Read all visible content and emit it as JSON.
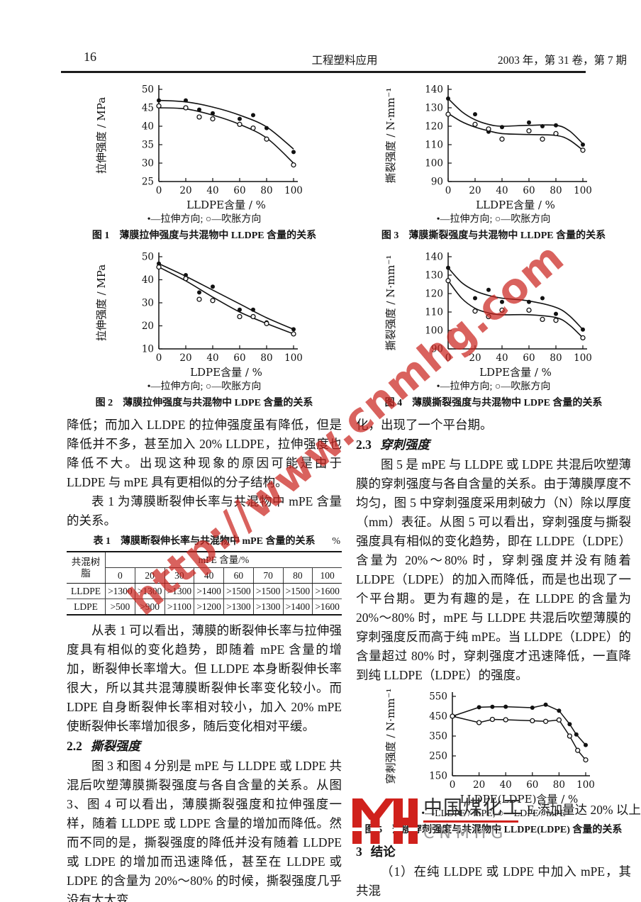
{
  "header": {
    "page_number": "16",
    "journal_title": "工程塑料应用",
    "issue_info": "2003 年，第 31 卷，第 7 期"
  },
  "watermark": {
    "text": "http://www.cnmhg.com",
    "color": "#ca2620"
  },
  "charts": [
    {
      "type": "scatter",
      "ylabel": "拉伸强度 / MPa",
      "xlabel": "LLDPE含量 / %",
      "ylim": [
        25,
        50
      ],
      "yticks": [
        25,
        30,
        35,
        40,
        45,
        50
      ],
      "xlim": [
        0,
        100
      ],
      "xticks": [
        0,
        20,
        40,
        60,
        80,
        100
      ],
      "legend": "•—拉伸方向;  ○—吹胀方向",
      "caption": "图 1　薄膜拉伸强度与共混物中 LLDPE 含量的关系",
      "series": [
        {
          "name": "拉伸方向",
          "marker": "filled",
          "points": [
            [
              0,
              47
            ],
            [
              20,
              47
            ],
            [
              30,
              44.5
            ],
            [
              40,
              43.5
            ],
            [
              60,
              42
            ],
            [
              70,
              43
            ],
            [
              80,
              39.5
            ],
            [
              100,
              33
            ]
          ],
          "trend": [
            [
              0,
              47
            ],
            [
              20,
              46.6
            ],
            [
              40,
              45.2
            ],
            [
              60,
              43
            ],
            [
              80,
              39.8
            ],
            [
              100,
              33.8
            ]
          ]
        },
        {
          "name": "吹胀方向",
          "marker": "open",
          "points": [
            [
              0,
              45.5
            ],
            [
              20,
              45
            ],
            [
              30,
              42.5
            ],
            [
              40,
              42
            ],
            [
              60,
              40.5
            ],
            [
              70,
              39.5
            ],
            [
              80,
              36.5
            ],
            [
              100,
              29.5
            ]
          ],
          "trend": [
            [
              0,
              45
            ],
            [
              20,
              44.7
            ],
            [
              40,
              43
            ],
            [
              60,
              40.5
            ],
            [
              80,
              36.8
            ],
            [
              100,
              30
            ]
          ]
        }
      ]
    },
    {
      "type": "scatter",
      "ylabel": "拉伸强度 / MPa",
      "xlabel": "LDPE含量 / %",
      "ylim": [
        10,
        50
      ],
      "yticks": [
        10,
        20,
        30,
        40,
        50
      ],
      "xlim": [
        0,
        100
      ],
      "xticks": [
        0,
        20,
        40,
        60,
        80,
        100
      ],
      "legend": "•—拉伸方向;  ○—吹胀方向",
      "caption": "图 2　薄膜拉伸强度与共混物中 LDPE 含量的关系",
      "series": [
        {
          "name": "拉伸方向",
          "marker": "filled",
          "points": [
            [
              0,
              47
            ],
            [
              20,
              42
            ],
            [
              30,
              34.5
            ],
            [
              40,
              37
            ],
            [
              60,
              27
            ],
            [
              70,
              27
            ],
            [
              80,
              21.5
            ],
            [
              100,
              18.5
            ]
          ],
          "trend": [
            [
              0,
              47
            ],
            [
              20,
              41.5
            ],
            [
              40,
              35.5
            ],
            [
              60,
              29.5
            ],
            [
              80,
              23.5
            ],
            [
              100,
              18.5
            ]
          ]
        },
        {
          "name": "吹胀方向",
          "marker": "open",
          "points": [
            [
              0,
              45.5
            ],
            [
              20,
              40.5
            ],
            [
              30,
              31.5
            ],
            [
              40,
              31
            ],
            [
              60,
              24
            ],
            [
              70,
              24
            ],
            [
              80,
              21
            ],
            [
              100,
              16.5
            ]
          ],
          "trend": [
            [
              0,
              45.5
            ],
            [
              20,
              39.5
            ],
            [
              40,
              32.5
            ],
            [
              60,
              26
            ],
            [
              80,
              21
            ],
            [
              100,
              16.5
            ]
          ]
        }
      ]
    },
    {
      "type": "scatter",
      "ylabel": "撕裂强度 / N·mm⁻¹",
      "xlabel": "LLDPE含量 / %",
      "ylim": [
        90,
        140
      ],
      "yticks": [
        90,
        100,
        110,
        120,
        130,
        140
      ],
      "xlim": [
        0,
        100
      ],
      "xticks": [
        0,
        20,
        40,
        60,
        80,
        100
      ],
      "legend": "•—拉伸方向;  ○—吹胀方向",
      "caption": "图 3　薄膜撕裂强度与共混物中 LLDPE 含量的关系",
      "series": [
        {
          "name": "拉伸方向",
          "marker": "filled",
          "points": [
            [
              0,
              135
            ],
            [
              20,
              126.5
            ],
            [
              30,
              117
            ],
            [
              40,
              119.5
            ],
            [
              60,
              122
            ],
            [
              70,
              120
            ],
            [
              80,
              120.5
            ],
            [
              100,
              110
            ]
          ],
          "trend": [
            [
              0,
              135
            ],
            [
              10,
              128
            ],
            [
              20,
              123.5
            ],
            [
              30,
              121
            ],
            [
              40,
              120
            ],
            [
              60,
              120.5
            ],
            [
              80,
              120.5
            ],
            [
              90,
              117.5
            ],
            [
              100,
              110.5
            ]
          ]
        },
        {
          "name": "吹胀方向",
          "marker": "open",
          "points": [
            [
              0,
              126.5
            ],
            [
              20,
              121
            ],
            [
              30,
              118.5
            ],
            [
              40,
              113
            ],
            [
              60,
              117.5
            ],
            [
              70,
              113
            ],
            [
              80,
              116
            ],
            [
              100,
              107
            ]
          ],
          "trend": [
            [
              0,
              127
            ],
            [
              10,
              122.5
            ],
            [
              20,
              119.5
            ],
            [
              30,
              117.5
            ],
            [
              40,
              116
            ],
            [
              60,
              115.5
            ],
            [
              80,
              115
            ],
            [
              90,
              112.5
            ],
            [
              100,
              107
            ]
          ]
        }
      ]
    },
    {
      "type": "scatter",
      "ylabel": "撕裂强度 / N·mm⁻¹",
      "xlabel": "LDPE含量 / %",
      "ylim": [
        90,
        140
      ],
      "yticks": [
        90,
        100,
        110,
        120,
        130,
        140
      ],
      "xlim": [
        0,
        100
      ],
      "xticks": [
        0,
        20,
        40,
        60,
        80,
        100
      ],
      "legend": "•—拉伸方向;  ○—吹胀方向",
      "caption": "图 4　薄膜撕裂强度与共混物中 LDPE 含量的关系",
      "series": [
        {
          "name": "拉伸方向",
          "marker": "filled",
          "points": [
            [
              0,
              134
            ],
            [
              20,
              117.5
            ],
            [
              30,
              122
            ],
            [
              40,
              115.5
            ],
            [
              60,
              115.5
            ],
            [
              70,
              117.5
            ],
            [
              80,
              109
            ],
            [
              100,
              100.5
            ]
          ],
          "trend": [
            [
              0,
              134
            ],
            [
              10,
              126
            ],
            [
              20,
              121.5
            ],
            [
              30,
              119
            ],
            [
              40,
              117.5
            ],
            [
              60,
              116
            ],
            [
              80,
              112.5
            ],
            [
              90,
              108
            ],
            [
              100,
              100.5
            ]
          ]
        },
        {
          "name": "吹胀方向",
          "marker": "open",
          "points": [
            [
              0,
              127
            ],
            [
              20,
              110.5
            ],
            [
              30,
              107.5
            ],
            [
              40,
              111
            ],
            [
              60,
              111
            ],
            [
              70,
              106
            ],
            [
              80,
              105.5
            ],
            [
              100,
              96
            ]
          ],
          "trend": [
            [
              0,
              127
            ],
            [
              10,
              117.5
            ],
            [
              20,
              112
            ],
            [
              30,
              109.5
            ],
            [
              40,
              108.5
            ],
            [
              60,
              108.5
            ],
            [
              80,
              107
            ],
            [
              90,
              103
            ],
            [
              100,
              96
            ]
          ]
        }
      ]
    },
    {
      "type": "line",
      "connect": true,
      "ylabel": "穿刺强度 / N·mm⁻¹",
      "xlabel": "LLDPE(LDPE)含量 / %",
      "ylim": [
        150,
        550
      ],
      "yticks": [
        150,
        250,
        350,
        450,
        550
      ],
      "xlim": [
        0,
        100
      ],
      "xticks": [
        0,
        20,
        40,
        60,
        80,
        100
      ],
      "legend": "•—LLDPE / mPE;  ○—LDPE / mPE",
      "caption": "图 5　薄膜穿刺强度与共混物中 LLDPE(LDPE) 含量的关系",
      "series": [
        {
          "name": "LLDPE / mPE",
          "marker": "filled",
          "points": [
            [
              0,
              450
            ],
            [
              20,
              495
            ],
            [
              30,
              497
            ],
            [
              40,
              498
            ],
            [
              60,
              493
            ],
            [
              70,
              508
            ],
            [
              80,
              478
            ],
            [
              88,
              410
            ],
            [
              93,
              358
            ],
            [
              100,
              305
            ]
          ]
        },
        {
          "name": "LDPE / mPE",
          "marker": "open",
          "points": [
            [
              0,
              450
            ],
            [
              20,
              418
            ],
            [
              30,
              434
            ],
            [
              40,
              432
            ],
            [
              60,
              427
            ],
            [
              70,
              424
            ],
            [
              80,
              431
            ],
            [
              88,
              350
            ],
            [
              94,
              278
            ],
            [
              100,
              230
            ]
          ]
        }
      ]
    }
  ],
  "table": {
    "title": "表 1　薄膜断裂伸长率与共混物中 mPE 含量的关系",
    "unit": "%",
    "corner_header": "共混树脂",
    "span_header": "mPE 含量/%",
    "col_headers": [
      "0",
      "20",
      "30",
      "40",
      "60",
      "70",
      "80",
      "100"
    ],
    "rows": [
      {
        "label": "LLDPE",
        "values": [
          ">1300",
          ">1300",
          ">1300",
          ">1400",
          ">1500",
          ">1500",
          ">1500",
          ">1600"
        ]
      },
      {
        "label": "LDPE",
        "values": [
          ">500",
          ">900",
          ">1100",
          ">1200",
          ">1300",
          ">1300",
          ">1400",
          ">1600"
        ]
      }
    ]
  },
  "left_column": {
    "para1": "降低；而加入 LLDPE 的拉伸强度虽有降低，但是降低并不多，甚至加入 20% LLDPE，拉伸强度也降低不大。出现这种现象的原因可能是由于 LLDPE 与 mPE 具有更相似的分子结构。",
    "para2": "表 1 为薄膜断裂伸长率与共混物中 mPE 含量的关系。",
    "para3": "从表 1 可以看出，薄膜的断裂伸长率与拉伸强度具有相似的变化趋势，即随着 mPE 含量的增加，断裂伸长率增大。但 LLDPE 本身断裂伸长率很大，所以其共混薄膜断裂伸长率变化较小。而 LDPE 自身断裂伸长率相对较小，加入 20% mPE 使断裂伸长率增加很多，随后变化相对平缓。",
    "section_2_2_no": "2.2",
    "section_2_2": "撕裂强度",
    "para4": "图 3 和图 4 分别是 mPE 与 LLDPE 或 LDPE 共混后吹塑薄膜撕裂强度与各自含量的关系。从图 3、图 4 可以看出，薄膜撕裂强度和拉伸强度一样，随着 LLDPE 或 LDPE 含量的增加而降低。然而不同的是，撕裂强度的降低并没有随着 LLDPE 或 LDPE 的增加而迅速降低，甚至在 LLDPE 或 LDPE 的含量为 20%～80% 的时候，撕裂强度几乎没有太大变"
  },
  "right_column": {
    "para1": "化，出现了一个平台期。",
    "section_2_3_no": "2.3",
    "section_2_3": "穿刺强度",
    "para2": "图 5 是 mPE 与 LLDPE 或 LDPE 共混后吹塑薄膜的穿刺强度与各自含量的关系。由于薄膜厚度不均匀，图 5 中穿刺强度采用刺破力（N）除以厚度（mm）表征。从图 5 可以看出，穿刺强度与撕裂强度具有相似的变化趋势，即在 LLDPE（LDPE）含量为 20%～80% 时，穿刺强度并没有随着 LLDPE（LDPE）的加入而降低，而是也出现了一个平台期。更为有趣的是，在 LLDPE 的含量为 20%～80% 时，mPE 与 LLDPE 共混后吹塑薄膜的穿刺强度反而高于纯 mPE。当 LLDPE（LDPE）的含量超过 80% 时，穿刺强度才迅速降低，一直降到纯 LLDPE（LDPE）的强度。",
    "section_3_no": "3",
    "section_3": "结论",
    "conclusion_line1": "（1）在纯 LLDPE 或 LDPE 中加入 mPE，其共混",
    "conclusion_fragment": "E 添加量达 20% 以上"
  },
  "logo": {
    "monogram": "MYH",
    "brand": "中国煤化工",
    "sub": "CNMHG",
    "red": "#d0211c"
  }
}
